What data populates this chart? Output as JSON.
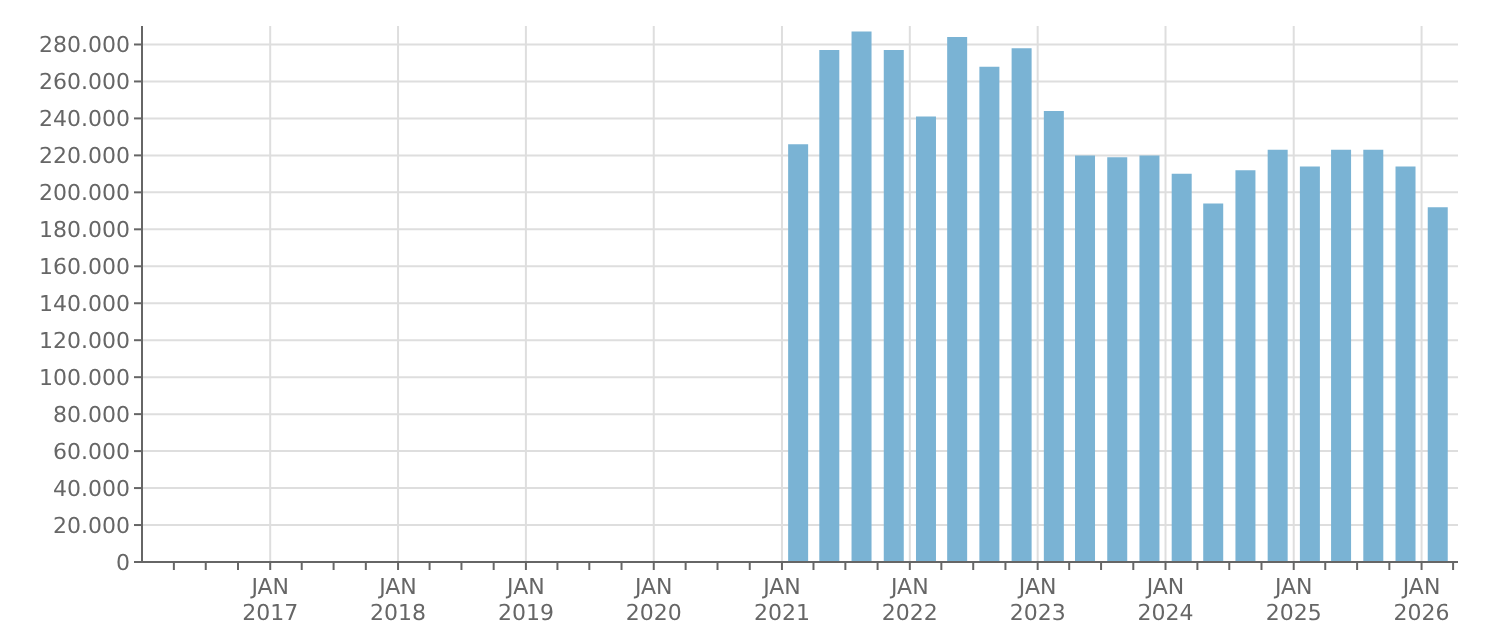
{
  "chart_data": {
    "type": "bar",
    "x": [
      "2021-02-15",
      "2021-05-15",
      "2021-08-15",
      "2021-11-15",
      "2022-02-15",
      "2022-05-15",
      "2022-08-15",
      "2022-11-15",
      "2023-02-15",
      "2023-05-15",
      "2023-08-15",
      "2023-11-15",
      "2024-02-15",
      "2024-05-15",
      "2024-08-15",
      "2024-11-15",
      "2025-02-15",
      "2025-05-15",
      "2025-08-15",
      "2025-11-15",
      "2026-02-15"
    ],
    "values": [
      226000,
      277000,
      287000,
      277000,
      241000,
      284000,
      268000,
      278000,
      244000,
      220000,
      219000,
      220000,
      210000,
      194000,
      212000,
      223000,
      214000,
      223000,
      223000,
      214000,
      192000
    ],
    "color": "#7ab3d4",
    "xlim": [
      "2016-01-01",
      "2026-04-15"
    ],
    "xticks": [
      {
        "value": "2016-04-01",
        "label": null
      },
      {
        "value": "2016-07-01",
        "label": null
      },
      {
        "value": "2016-10-01",
        "label": null
      },
      {
        "value": "2017-01-01",
        "label": "JAN 2017"
      },
      {
        "value": "2017-04-01",
        "label": null
      },
      {
        "value": "2017-07-01",
        "label": null
      },
      {
        "value": "2017-10-01",
        "label": null
      },
      {
        "value": "2018-01-01",
        "label": "JAN 2018"
      },
      {
        "value": "2018-04-01",
        "label": null
      },
      {
        "value": "2018-07-01",
        "label": null
      },
      {
        "value": "2018-10-01",
        "label": null
      },
      {
        "value": "2019-01-01",
        "label": "JAN 2019"
      },
      {
        "value": "2019-04-01",
        "label": null
      },
      {
        "value": "2019-07-01",
        "label": null
      },
      {
        "value": "2019-10-01",
        "label": null
      },
      {
        "value": "2020-01-01",
        "label": "JAN 2020"
      },
      {
        "value": "2020-04-01",
        "label": null
      },
      {
        "value": "2020-07-01",
        "label": null
      },
      {
        "value": "2020-10-01",
        "label": null
      },
      {
        "value": "2021-01-01",
        "label": "JAN 2021"
      },
      {
        "value": "2021-04-01",
        "label": null
      },
      {
        "value": "2021-07-01",
        "label": null
      },
      {
        "value": "2021-10-01",
        "label": null
      },
      {
        "value": "2022-01-01",
        "label": "JAN 2022"
      },
      {
        "value": "2022-04-01",
        "label": null
      },
      {
        "value": "2022-07-01",
        "label": null
      },
      {
        "value": "2022-10-01",
        "label": null
      },
      {
        "value": "2023-01-01",
        "label": "JAN 2023"
      },
      {
        "value": "2023-04-01",
        "label": null
      },
      {
        "value": "2023-07-01",
        "label": null
      },
      {
        "value": "2023-10-01",
        "label": null
      },
      {
        "value": "2024-01-01",
        "label": "JAN 2024"
      },
      {
        "value": "2024-04-01",
        "label": null
      },
      {
        "value": "2024-07-01",
        "label": null
      },
      {
        "value": "2024-10-01",
        "label": null
      },
      {
        "value": "2025-01-01",
        "label": "JAN 2025"
      },
      {
        "value": "2025-04-01",
        "label": null
      },
      {
        "value": "2025-07-01",
        "label": null
      },
      {
        "value": "2025-10-01",
        "label": null
      },
      {
        "value": "2026-01-01",
        "label": "JAN 2026"
      },
      {
        "value": "2026-04-01",
        "label": null
      }
    ],
    "ylim": [
      0,
      290000
    ],
    "yticks": [
      0,
      {
        "value": 20000,
        "label": "20.000"
      },
      {
        "value": 40000,
        "label": "40.000"
      },
      {
        "value": 60000,
        "label": "60.000"
      },
      {
        "value": 80000,
        "label": "80.000"
      },
      {
        "value": 100000,
        "label": "100.000"
      },
      {
        "value": 120000,
        "label": "120.000"
      },
      {
        "value": 140000,
        "label": "140.000"
      },
      {
        "value": 160000,
        "label": "160.000"
      },
      {
        "value": 180000,
        "label": "180.000"
      },
      {
        "value": 200000,
        "label": "200.000"
      },
      {
        "value": 220000,
        "label": "220.000"
      },
      {
        "value": 240000,
        "label": "240.000"
      },
      {
        "value": 260000,
        "label": "260.000"
      },
      {
        "value": 280000,
        "label": "280.000"
      }
    ],
    "grid": true
  }
}
